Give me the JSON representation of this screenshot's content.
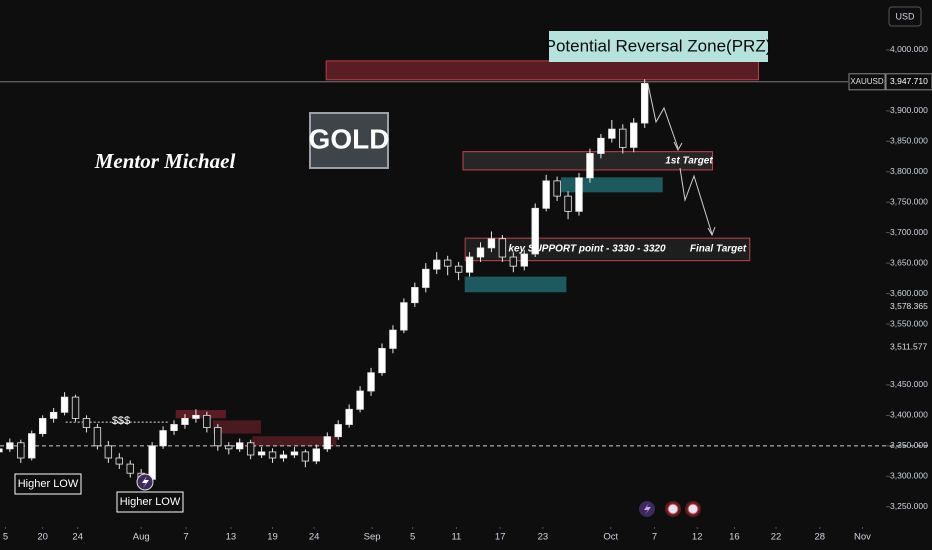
{
  "chart_data": {
    "type": "candlestick",
    "currency": "USD",
    "symbol": "XAUUSD",
    "last_price": {
      "value": 3947.71,
      "label": "3,947.710"
    },
    "price_tags": [
      {
        "value": 3578.365,
        "label": "3,578.365"
      },
      {
        "value": 3511.577,
        "label": "3,511.577"
      }
    ],
    "up_color": "#ffffff",
    "down_color": "#131313",
    "xlim": [
      -12.9,
      67.5
    ],
    "ylim": [
      3220,
      4082
    ],
    "xticks": [
      {
        "value": -12.4,
        "label": "5"
      },
      {
        "value": -9.0,
        "label": "20"
      },
      {
        "value": -5.8,
        "label": "24"
      },
      {
        "value": 0,
        "label": "Aug"
      },
      {
        "value": 4.1,
        "label": "7"
      },
      {
        "value": 8.2,
        "label": "13"
      },
      {
        "value": 12.0,
        "label": "19"
      },
      {
        "value": 15.8,
        "label": "24"
      },
      {
        "value": 21.1,
        "label": "Sep"
      },
      {
        "value": 24.8,
        "label": "5"
      },
      {
        "value": 28.8,
        "label": "11"
      },
      {
        "value": 32.8,
        "label": "17"
      },
      {
        "value": 36.7,
        "label": "23"
      },
      {
        "value": 42.9,
        "label": "Oct"
      },
      {
        "value": 46.9,
        "label": "7"
      },
      {
        "value": 50.8,
        "label": "12"
      },
      {
        "value": 54.2,
        "label": "16"
      },
      {
        "value": 58.0,
        "label": "22"
      },
      {
        "value": 62.0,
        "label": "28"
      },
      {
        "value": 65.9,
        "label": "Nov"
      }
    ],
    "yticks": [
      {
        "value": 4000,
        "label": "4,000.000"
      },
      {
        "value": 3900,
        "label": "3,900.000"
      },
      {
        "value": 3850,
        "label": "3,850.000"
      },
      {
        "value": 3800,
        "label": "3,800.000"
      },
      {
        "value": 3750,
        "label": "3,750.000"
      },
      {
        "value": 3700,
        "label": "3,700.000"
      },
      {
        "value": 3650,
        "label": "3,650.000"
      },
      {
        "value": 3600,
        "label": "3,600.000"
      },
      {
        "value": 3550,
        "label": "3,550.000"
      },
      {
        "value": 3450,
        "label": "3,450.000"
      },
      {
        "value": 3400,
        "label": "3,400.000"
      },
      {
        "value": 3350,
        "label": "3,350.000"
      },
      {
        "value": 3300,
        "label": "3,300.000"
      },
      {
        "value": 3250,
        "label": "3,250.000"
      }
    ],
    "x": [
      -13,
      -12,
      -11,
      -10,
      -9,
      -8,
      -7,
      -6,
      -5,
      -4,
      -3,
      -2,
      -1,
      0,
      1,
      2,
      3,
      4,
      5,
      6,
      7,
      8,
      9,
      10,
      11,
      12,
      13,
      14,
      15,
      16,
      17,
      18,
      19,
      20,
      21,
      22,
      23,
      24,
      25,
      26,
      27,
      28,
      29,
      30,
      31,
      32,
      33,
      34,
      35,
      36,
      37,
      38,
      39,
      40,
      41,
      42,
      43,
      44,
      45,
      46
    ],
    "ohlc": [
      [
        3340,
        3352,
        3332,
        3345
      ],
      [
        3345,
        3362,
        3340,
        3355
      ],
      [
        3355,
        3360,
        3322,
        3330
      ],
      [
        3330,
        3375,
        3326,
        3370
      ],
      [
        3370,
        3400,
        3365,
        3395
      ],
      [
        3395,
        3412,
        3388,
        3405
      ],
      [
        3405,
        3438,
        3400,
        3430
      ],
      [
        3430,
        3434,
        3390,
        3395
      ],
      [
        3395,
        3400,
        3372,
        3380
      ],
      [
        3380,
        3386,
        3344,
        3350
      ],
      [
        3350,
        3358,
        3322,
        3330
      ],
      [
        3330,
        3338,
        3312,
        3320
      ],
      [
        3320,
        3326,
        3298,
        3305
      ],
      [
        3305,
        3312,
        3285,
        3295
      ],
      [
        3295,
        3356,
        3290,
        3350
      ],
      [
        3350,
        3382,
        3345,
        3375
      ],
      [
        3375,
        3392,
        3368,
        3385
      ],
      [
        3385,
        3402,
        3378,
        3395
      ],
      [
        3395,
        3410,
        3388,
        3400
      ],
      [
        3400,
        3406,
        3372,
        3380
      ],
      [
        3380,
        3386,
        3342,
        3350
      ],
      [
        3350,
        3356,
        3336,
        3345
      ],
      [
        3345,
        3362,
        3340,
        3355
      ],
      [
        3355,
        3360,
        3328,
        3335
      ],
      [
        3335,
        3348,
        3330,
        3340
      ],
      [
        3340,
        3346,
        3322,
        3330
      ],
      [
        3330,
        3342,
        3324,
        3335
      ],
      [
        3335,
        3348,
        3330,
        3340
      ],
      [
        3340,
        3344,
        3315,
        3325
      ],
      [
        3325,
        3352,
        3320,
        3345
      ],
      [
        3345,
        3372,
        3340,
        3365
      ],
      [
        3365,
        3392,
        3360,
        3385
      ],
      [
        3385,
        3418,
        3380,
        3410
      ],
      [
        3410,
        3448,
        3405,
        3440
      ],
      [
        3440,
        3478,
        3432,
        3470
      ],
      [
        3470,
        3518,
        3465,
        3510
      ],
      [
        3510,
        3548,
        3502,
        3540
      ],
      [
        3540,
        3592,
        3535,
        3585
      ],
      [
        3585,
        3618,
        3578,
        3610
      ],
      [
        3610,
        3650,
        3602,
        3640
      ],
      [
        3640,
        3668,
        3632,
        3655
      ],
      [
        3655,
        3662,
        3630,
        3645
      ],
      [
        3645,
        3652,
        3622,
        3635
      ],
      [
        3635,
        3668,
        3628,
        3660
      ],
      [
        3660,
        3684,
        3652,
        3675
      ],
      [
        3675,
        3702,
        3668,
        3690
      ],
      [
        3690,
        3696,
        3652,
        3660
      ],
      [
        3660,
        3668,
        3635,
        3645
      ],
      [
        3645,
        3672,
        3638,
        3665
      ],
      [
        3665,
        3748,
        3660,
        3740
      ],
      [
        3740,
        3795,
        3735,
        3785
      ],
      [
        3785,
        3792,
        3752,
        3760
      ],
      [
        3760,
        3768,
        3722,
        3735
      ],
      [
        3735,
        3798,
        3728,
        3790
      ],
      [
        3790,
        3838,
        3782,
        3830
      ],
      [
        3830,
        3862,
        3822,
        3855
      ],
      [
        3855,
        3885,
        3848,
        3870
      ],
      [
        3870,
        3878,
        3830,
        3840
      ],
      [
        3840,
        3888,
        3832,
        3880
      ],
      [
        3880,
        3952,
        3872,
        3945
      ]
    ],
    "zones": [
      {
        "x": [
          16.9,
          56.4
        ],
        "y": [
          3951,
          3982
        ],
        "color": "#5a1d24",
        "border": "#b8404c"
      },
      {
        "x": [
          29.4,
          52.2
        ],
        "y": [
          3803,
          3833
        ],
        "color": "#262626",
        "border": "#c0434f"
      },
      {
        "x": [
          38.4,
          47.6
        ],
        "y": [
          3767,
          3790
        ],
        "color": "#1d5a60",
        "border": "#1d5a60"
      },
      {
        "x": [
          29.6,
          55.6
        ],
        "y": [
          3654,
          3691
        ],
        "color": "#1e1e1e",
        "border": "#c0434f"
      },
      {
        "x": [
          29.6,
          38.8
        ],
        "y": [
          3603,
          3627
        ],
        "color": "#1d5a60",
        "border": "#1d5a60"
      },
      {
        "x": [
          3.2,
          7.7
        ],
        "y": [
          3396,
          3408
        ],
        "color": "#5a1d24",
        "border": "#5a1d24"
      },
      {
        "x": [
          6.6,
          10.9
        ],
        "y": [
          3371,
          3391
        ],
        "color": "#4a1a20",
        "border": "#4a1a20"
      },
      {
        "x": [
          10.2,
          17.8
        ],
        "y": [
          3350,
          3365
        ],
        "color": "#4a1a20",
        "border": "#4a1a20"
      }
    ],
    "hline": 3350,
    "liquidity_line": {
      "value": 3389,
      "x": [
        -6.9,
        2.6
      ]
    },
    "annotations": {
      "prz": "Potential Reversal Zone(PRZ)",
      "badge": "GOLD",
      "author": "Mentor Michael",
      "first_target": "1st Target",
      "support": "key SUPPORT point - 3330 - 3320",
      "final_target": "Final Target",
      "liquidity": "$$$",
      "higher_low_1": "Higher LOW",
      "higher_low_2": "Higher LOW"
    }
  }
}
